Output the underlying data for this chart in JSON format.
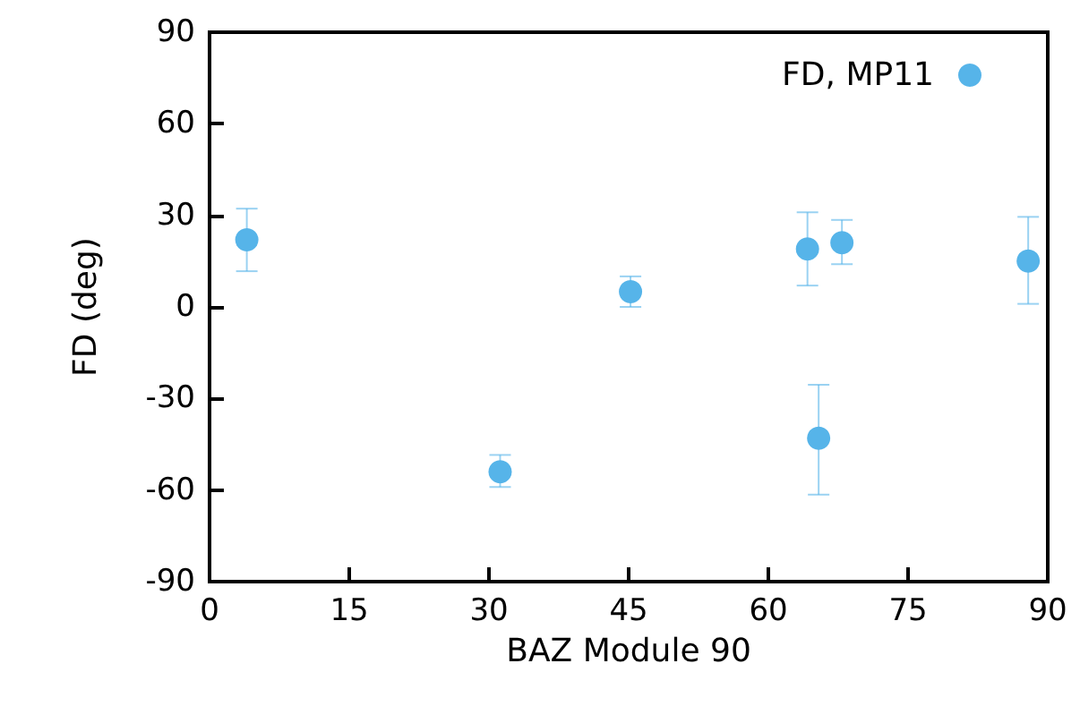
{
  "chart_data": {
    "type": "scatter",
    "xlabel": "BAZ Module 90",
    "ylabel": "FD (deg)",
    "series": [
      {
        "name": "FD, MP11",
        "color": "#56b4e9",
        "x": [
          4,
          31.2,
          45.2,
          64.2,
          65.4,
          67.9,
          87.9
        ],
        "values": [
          22,
          -54,
          5,
          19,
          -43,
          21,
          15
        ],
        "errors": [
          [
            11.7,
            32.2
          ],
          [
            -59,
            -48.5
          ],
          [
            0,
            10
          ],
          [
            7,
            31
          ],
          [
            -61.5,
            -25.5
          ],
          [
            14,
            28.5
          ],
          [
            1,
            29.5
          ]
        ]
      }
    ],
    "xlim": [
      0,
      90
    ],
    "xticks": [
      0,
      15,
      30,
      45,
      60,
      75,
      90
    ],
    "ylim": [
      -90,
      90
    ],
    "yticks": [
      -90,
      -60,
      -30,
      0,
      30,
      60,
      90
    ],
    "grid": false,
    "legend": "top right",
    "marker": "circle"
  }
}
